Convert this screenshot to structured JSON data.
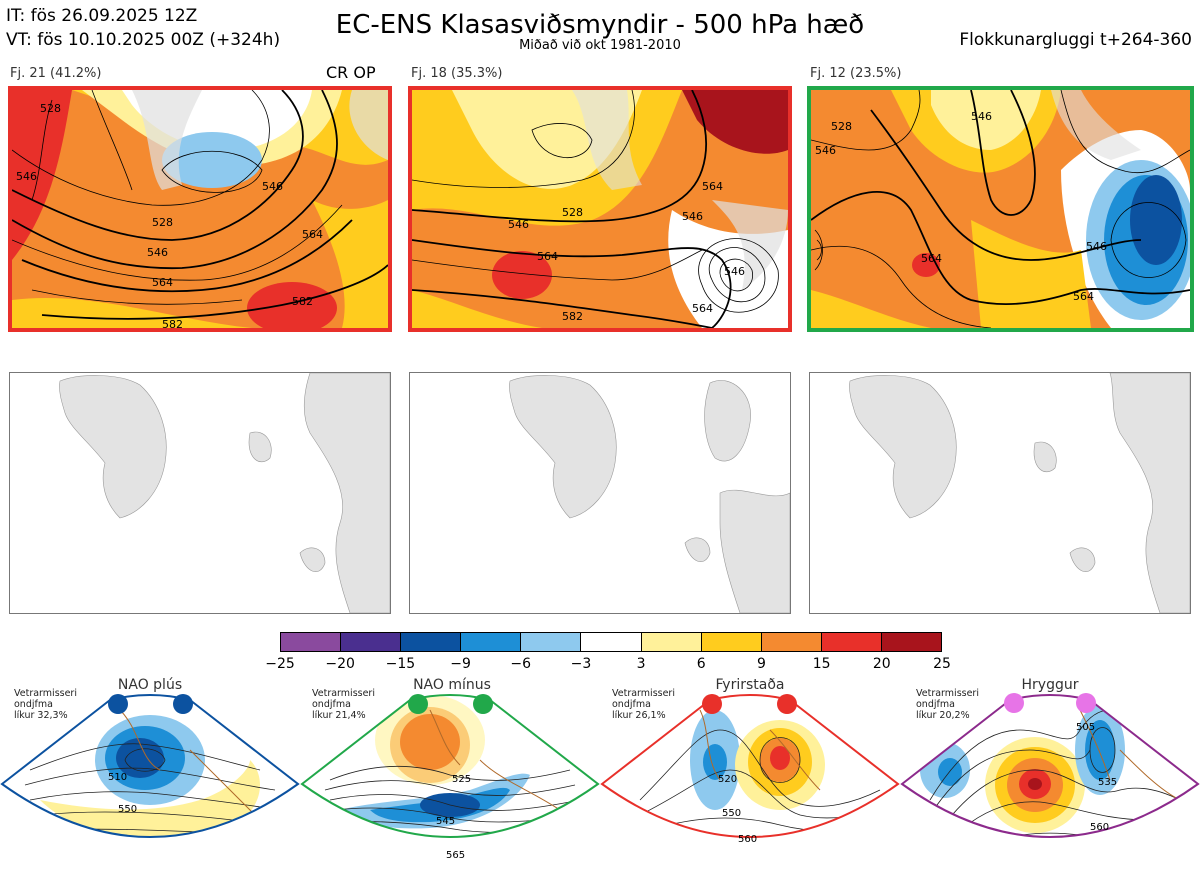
{
  "header": {
    "init_time": "IT: fös 26.09.2025 12Z",
    "valid_time": "VT: fös 10.10.2025 00Z  (+324h)",
    "title": "EC-ENS Klasasviðsmyndir - 500 hPa hæð",
    "subtitle": "Miðað við okt 1981-2010",
    "window": "Flokkunargluggi t+264-360"
  },
  "clusters": [
    {
      "label": "Fj. 21 (41.2%)",
      "border_color": "#e8302a",
      "tag": "CR OP",
      "contours": [
        "528",
        "546",
        "564",
        "582",
        "546",
        "564",
        "582",
        "546",
        "528"
      ]
    },
    {
      "label": "Fj. 18 (35.3%)",
      "border_color": "#e8302a",
      "contours": [
        "528",
        "546",
        "564",
        "582",
        "546",
        "564",
        "546",
        "564"
      ]
    },
    {
      "label": "Fj. 12 (23.5%)",
      "border_color": "#21a84a",
      "contours": [
        "528",
        "546",
        "564",
        "546",
        "564",
        "546"
      ]
    }
  ],
  "colorbar": {
    "ticks": [
      "−25",
      "−20",
      "−15",
      "−9",
      "−6",
      "−3",
      "3",
      "6",
      "9",
      "15",
      "20",
      "25"
    ],
    "colors": [
      "#8a4a9e",
      "#4a2f8f",
      "#0c52a0",
      "#1e8fd6",
      "#8ec9ee",
      "#ffffff",
      "#fff19a",
      "#ffcc1e",
      "#f48a30",
      "#e8302a",
      "#a8141c"
    ]
  },
  "regimes": [
    {
      "title": "NAO plús",
      "color": "#0c52a0",
      "info": "Vetrarmisseri\nondjfma\nlíkur 32,3%",
      "contours": [
        "510",
        "550"
      ]
    },
    {
      "title": "NAO mínus",
      "color": "#21a84a",
      "info": "Vetrarmisseri\nondjfma\nlíkur 21,4%",
      "contours": [
        "525",
        "545",
        "565"
      ]
    },
    {
      "title": "Fyrirstaða",
      "color": "#e8302a",
      "info": "Vetrarmisseri\nondjfma\nlíkur 26,1%",
      "contours": [
        "520",
        "550",
        "560"
      ]
    },
    {
      "title": "Hryggur",
      "color": "#8c2a8c",
      "dot_color": "#e774e7",
      "info": "Vetrarmisseri\nondjfma\nlíkur 20,2%",
      "contours": [
        "505",
        "535",
        "560"
      ]
    }
  ]
}
